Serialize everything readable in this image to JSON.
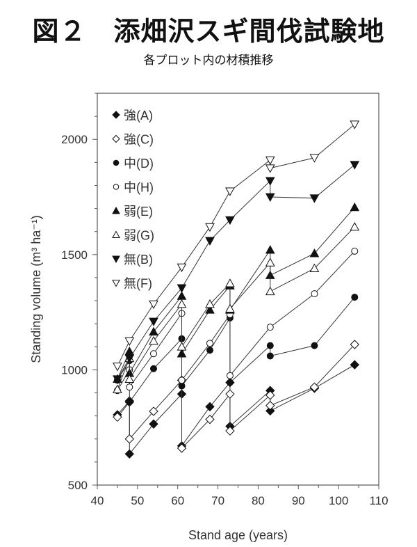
{
  "title": "図２　添畑沢スギ間伐試験地",
  "subtitle": "各プロット内の材積推移",
  "chart_data": {
    "type": "line",
    "xlabel": "Stand age (years)",
    "ylabel": "Standing volume (m³ ha⁻¹)",
    "xlim": [
      40,
      110
    ],
    "ylim": [
      500,
      2200
    ],
    "xticks": [
      40,
      50,
      60,
      70,
      80,
      90,
      100,
      110
    ],
    "yticks": [
      500,
      1000,
      1500,
      2000
    ],
    "legend_position": "top-left",
    "series": [
      {
        "name": "強(A)",
        "marker": "diamond-filled",
        "points": [
          [
            45,
            805
          ],
          [
            48,
            865
          ],
          [
            48,
            635
          ],
          [
            54,
            765
          ],
          [
            61,
            895
          ],
          [
            61,
            670
          ],
          [
            68,
            840
          ],
          [
            73,
            945
          ],
          [
            73,
            755
          ],
          [
            83,
            910
          ],
          [
            83,
            822
          ],
          [
            94,
            920
          ],
          [
            104,
            1022
          ]
        ]
      },
      {
        "name": "強(C)",
        "marker": "diamond-open",
        "points": [
          [
            45,
            795
          ],
          [
            48,
            860
          ],
          [
            48,
            700
          ],
          [
            54,
            820
          ],
          [
            61,
            955
          ],
          [
            61,
            660
          ],
          [
            68,
            785
          ],
          [
            73,
            895
          ],
          [
            73,
            735
          ],
          [
            83,
            890
          ],
          [
            83,
            845
          ],
          [
            94,
            925
          ],
          [
            104,
            1110
          ]
        ]
      },
      {
        "name": "中(D)",
        "marker": "circle-filled",
        "points": [
          [
            45,
            955
          ],
          [
            48,
            1040
          ],
          [
            48,
            860
          ],
          [
            54,
            1005
          ],
          [
            61,
            1135
          ],
          [
            61,
            930
          ],
          [
            68,
            1085
          ],
          [
            73,
            1225
          ],
          [
            73,
            945
          ],
          [
            83,
            1105
          ],
          [
            83,
            1060
          ],
          [
            94,
            1105
          ],
          [
            104,
            1315
          ]
        ]
      },
      {
        "name": "中(H)",
        "marker": "circle-open",
        "points": [
          [
            45,
            910
          ],
          [
            48,
            1000
          ],
          [
            48,
            925
          ],
          [
            54,
            1070
          ],
          [
            61,
            1245
          ],
          [
            61,
            955
          ],
          [
            68,
            1115
          ],
          [
            73,
            1240
          ],
          [
            73,
            975
          ],
          [
            83,
            1185
          ],
          [
            94,
            1330
          ],
          [
            104,
            1515
          ]
        ]
      },
      {
        "name": "弱(E)",
        "marker": "triangle-up-filled",
        "points": [
          [
            45,
            960
          ],
          [
            48,
            1080
          ],
          [
            48,
            985
          ],
          [
            54,
            1165
          ],
          [
            61,
            1320
          ],
          [
            61,
            1070
          ],
          [
            68,
            1260
          ],
          [
            73,
            1365
          ],
          [
            73,
            1260
          ],
          [
            83,
            1520
          ],
          [
            83,
            1410
          ],
          [
            94,
            1505
          ],
          [
            104,
            1705
          ]
        ]
      },
      {
        "name": "弱(G)",
        "marker": "triangle-up-open",
        "points": [
          [
            45,
            915
          ],
          [
            48,
            1050
          ],
          [
            48,
            960
          ],
          [
            54,
            1125
          ],
          [
            61,
            1285
          ],
          [
            61,
            1100
          ],
          [
            68,
            1285
          ],
          [
            73,
            1375
          ],
          [
            73,
            1265
          ],
          [
            83,
            1465
          ],
          [
            83,
            1340
          ],
          [
            94,
            1440
          ],
          [
            104,
            1620
          ]
        ]
      },
      {
        "name": "無(B)",
        "marker": "triangle-down-filled",
        "points": [
          [
            45,
            960
          ],
          [
            48,
            1050
          ],
          [
            54,
            1210
          ],
          [
            61,
            1355
          ],
          [
            68,
            1560
          ],
          [
            73,
            1650
          ],
          [
            83,
            1820
          ],
          [
            83,
            1750
          ],
          [
            94,
            1745
          ],
          [
            104,
            1890
          ]
        ]
      },
      {
        "name": "無(F)",
        "marker": "triangle-down-open",
        "points": [
          [
            45,
            1015
          ],
          [
            48,
            1125
          ],
          [
            54,
            1285
          ],
          [
            61,
            1445
          ],
          [
            68,
            1620
          ],
          [
            73,
            1775
          ],
          [
            83,
            1910
          ],
          [
            83,
            1875
          ],
          [
            94,
            1920
          ],
          [
            104,
            2065
          ]
        ]
      }
    ]
  }
}
